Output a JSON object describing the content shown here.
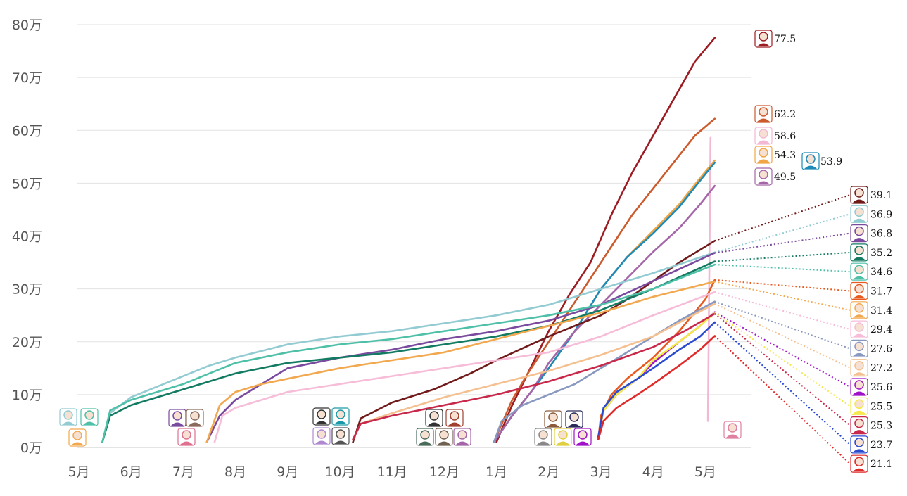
{
  "chart_data": {
    "type": "line",
    "y_ticks": [
      "0万",
      "10万",
      "20万",
      "30万",
      "40万",
      "50万",
      "60万",
      "70万",
      "80万"
    ],
    "x_ticks": [
      "5月",
      "6月",
      "7月",
      "8月",
      "9月",
      "10月",
      "11月",
      "12月",
      "1月",
      "2月",
      "3月",
      "4月",
      "5月"
    ],
    "ylim": [
      0,
      80
    ],
    "grid": "horizontal",
    "series": [
      {
        "value_label": "77.5",
        "color": "#9c1c22",
        "points": [
          [
            8.0,
            1
          ],
          [
            8.3,
            8
          ],
          [
            8.6,
            14
          ],
          [
            9.0,
            22
          ],
          [
            9.4,
            29
          ],
          [
            9.8,
            35
          ],
          [
            10.2,
            44
          ],
          [
            10.6,
            52
          ],
          [
            11.0,
            59
          ],
          [
            11.4,
            66
          ],
          [
            11.8,
            73
          ],
          [
            12.18,
            77.5
          ]
        ]
      },
      {
        "value_label": "62.2",
        "color": "#cc5a2c",
        "points": [
          [
            7.95,
            1
          ],
          [
            8.3,
            9
          ],
          [
            8.6,
            14
          ],
          [
            9.0,
            20
          ],
          [
            9.4,
            26
          ],
          [
            9.8,
            32
          ],
          [
            10.2,
            38
          ],
          [
            10.6,
            44
          ],
          [
            11.0,
            49
          ],
          [
            11.4,
            54
          ],
          [
            11.8,
            59
          ],
          [
            12.18,
            62.2
          ]
        ]
      },
      {
        "value_label": "58.6",
        "color": "#f2b8d4",
        "points": [
          [
            12.05,
            5
          ],
          [
            12.1,
            58.6
          ]
        ]
      },
      {
        "value_label": "54.3",
        "color": "#f0a646",
        "points": [
          [
            7.95,
            1
          ],
          [
            8.3,
            6
          ],
          [
            8.7,
            11
          ],
          [
            9.0,
            15
          ],
          [
            9.5,
            22
          ],
          [
            10.0,
            30
          ],
          [
            10.5,
            36
          ],
          [
            11.0,
            41
          ],
          [
            11.5,
            46
          ],
          [
            11.9,
            51
          ],
          [
            12.18,
            54.3
          ]
        ]
      },
      {
        "value_label": "53.9",
        "color": "#1e8ab8",
        "points": [
          [
            7.95,
            1
          ],
          [
            8.3,
            6
          ],
          [
            8.7,
            11
          ],
          [
            9.0,
            15
          ],
          [
            9.5,
            22
          ],
          [
            10.0,
            30
          ],
          [
            10.5,
            36
          ],
          [
            11.0,
            40.5
          ],
          [
            11.5,
            45.5
          ],
          [
            11.9,
            50.5
          ],
          [
            12.18,
            53.9
          ]
        ]
      },
      {
        "value_label": "49.5",
        "color": "#a466a8",
        "points": [
          [
            7.95,
            1
          ],
          [
            8.3,
            6
          ],
          [
            8.7,
            11
          ],
          [
            9.0,
            16
          ],
          [
            9.5,
            22
          ],
          [
            10.0,
            27
          ],
          [
            10.5,
            32
          ],
          [
            11.0,
            37
          ],
          [
            11.5,
            41.5
          ],
          [
            11.9,
            46
          ],
          [
            12.18,
            49.5
          ]
        ]
      },
      {
        "value_label": "39.1",
        "color": "#701a1a",
        "points": [
          [
            5.25,
            1
          ],
          [
            5.4,
            5.5
          ],
          [
            6.0,
            8.5
          ],
          [
            6.8,
            11
          ],
          [
            7.5,
            14
          ],
          [
            8.0,
            16.5
          ],
          [
            9.0,
            21
          ],
          [
            10.0,
            25
          ],
          [
            10.5,
            28
          ],
          [
            11.0,
            31.5
          ],
          [
            11.5,
            35
          ],
          [
            12.18,
            39.1
          ]
        ]
      },
      {
        "value_label": "36.9",
        "color": "#92cbd2",
        "points": [
          [
            0.45,
            1
          ],
          [
            0.6,
            6.5
          ],
          [
            1.0,
            9.5
          ],
          [
            1.5,
            11.5
          ],
          [
            2.0,
            13.5
          ],
          [
            2.5,
            15.5
          ],
          [
            3.0,
            17
          ],
          [
            4.0,
            19.5
          ],
          [
            5.0,
            21
          ],
          [
            6.0,
            22
          ],
          [
            7.0,
            23.5
          ],
          [
            8.0,
            25
          ],
          [
            9.0,
            27
          ],
          [
            10.0,
            30
          ],
          [
            11.0,
            33
          ],
          [
            12.18,
            36.9
          ]
        ]
      },
      {
        "value_label": "36.8",
        "color": "#7a4a9e",
        "points": [
          [
            2.45,
            1
          ],
          [
            2.7,
            6
          ],
          [
            3.0,
            9
          ],
          [
            3.5,
            12
          ],
          [
            4.0,
            15
          ],
          [
            5.0,
            17
          ],
          [
            6.0,
            18.5
          ],
          [
            7.0,
            20.5
          ],
          [
            8.0,
            22
          ],
          [
            9.0,
            24
          ],
          [
            10.0,
            27
          ],
          [
            11.0,
            31.5
          ],
          [
            12.18,
            36.8
          ]
        ]
      },
      {
        "value_label": "35.2",
        "color": "#137b62",
        "points": [
          [
            0.45,
            1
          ],
          [
            0.6,
            6
          ],
          [
            1.0,
            8
          ],
          [
            1.5,
            9.5
          ],
          [
            2.0,
            11
          ],
          [
            2.5,
            12.5
          ],
          [
            3.0,
            14
          ],
          [
            4.0,
            16
          ],
          [
            5.0,
            17
          ],
          [
            6.0,
            18
          ],
          [
            7.0,
            19.5
          ],
          [
            8.0,
            21
          ],
          [
            9.0,
            23
          ],
          [
            10.0,
            26
          ],
          [
            11.0,
            30
          ],
          [
            12.18,
            35.2
          ]
        ]
      },
      {
        "value_label": "34.6",
        "color": "#4fc0a8",
        "points": [
          [
            0.45,
            1
          ],
          [
            0.6,
            7
          ],
          [
            1.0,
            9
          ],
          [
            1.5,
            10.5
          ],
          [
            2.0,
            12
          ],
          [
            2.5,
            14
          ],
          [
            3.0,
            16
          ],
          [
            4.0,
            18
          ],
          [
            5.0,
            19.5
          ],
          [
            6.0,
            20.5
          ],
          [
            7.0,
            22
          ],
          [
            8.0,
            23.5
          ],
          [
            9.0,
            25
          ],
          [
            10.0,
            27
          ],
          [
            11.0,
            30
          ],
          [
            12.18,
            34.6
          ]
        ]
      },
      {
        "value_label": "31.7",
        "color": "#e8591f",
        "points": [
          [
            9.95,
            1.5
          ],
          [
            10.0,
            6
          ],
          [
            10.2,
            10
          ],
          [
            10.5,
            13
          ],
          [
            11.0,
            17
          ],
          [
            11.5,
            22
          ],
          [
            12.0,
            28
          ],
          [
            12.18,
            31.7
          ]
        ]
      },
      {
        "value_label": "31.4",
        "color": "#f2a84e",
        "points": [
          [
            2.45,
            1
          ],
          [
            2.7,
            8
          ],
          [
            3.0,
            10.5
          ],
          [
            3.5,
            12
          ],
          [
            4.0,
            13
          ],
          [
            5.0,
            15
          ],
          [
            6.0,
            16.5
          ],
          [
            7.0,
            18
          ],
          [
            8.0,
            20.5
          ],
          [
            9.0,
            23
          ],
          [
            10.0,
            25.5
          ],
          [
            11.0,
            28.5
          ],
          [
            12.18,
            31.4
          ]
        ]
      },
      {
        "value_label": "29.4",
        "color": "#f6bcd8",
        "points": [
          [
            2.6,
            1
          ],
          [
            2.75,
            6
          ],
          [
            3.0,
            7.5
          ],
          [
            3.5,
            9
          ],
          [
            4.0,
            10.5
          ],
          [
            5.0,
            12
          ],
          [
            6.0,
            13.5
          ],
          [
            7.0,
            15
          ],
          [
            8.0,
            16.5
          ],
          [
            9.0,
            18
          ],
          [
            10.0,
            21
          ],
          [
            11.0,
            25
          ],
          [
            12.18,
            29.4
          ]
        ]
      },
      {
        "value_label": "27.6",
        "color": "#8898c0",
        "points": [
          [
            7.95,
            1
          ],
          [
            8.1,
            5
          ],
          [
            8.5,
            8
          ],
          [
            9.0,
            10
          ],
          [
            9.5,
            12
          ],
          [
            10.0,
            15
          ],
          [
            10.5,
            18
          ],
          [
            11.0,
            21
          ],
          [
            11.5,
            24
          ],
          [
            12.18,
            27.6
          ]
        ]
      },
      {
        "value_label": "27.2",
        "color": "#f4c090",
        "points": [
          [
            5.25,
            1.5
          ],
          [
            5.4,
            4.5
          ],
          [
            6.0,
            6.5
          ],
          [
            7.0,
            9.5
          ],
          [
            8.0,
            12
          ],
          [
            9.0,
            14.5
          ],
          [
            10.0,
            17.5
          ],
          [
            11.0,
            21
          ],
          [
            12.18,
            27.2
          ]
        ]
      },
      {
        "value_label": "25.6",
        "color": "#a012c8",
        "points": [
          [
            9.95,
            2
          ],
          [
            10.05,
            7
          ],
          [
            10.3,
            10
          ],
          [
            10.7,
            13
          ],
          [
            11.0,
            16
          ],
          [
            11.5,
            20
          ],
          [
            11.9,
            23
          ],
          [
            12.18,
            25.6
          ]
        ]
      },
      {
        "value_label": "25.5",
        "color": "#f5e84a",
        "points": [
          [
            9.95,
            2
          ],
          [
            10.05,
            7
          ],
          [
            10.3,
            10
          ],
          [
            10.7,
            13
          ],
          [
            11.0,
            16.5
          ],
          [
            11.5,
            20
          ],
          [
            11.9,
            23
          ],
          [
            12.18,
            25.5
          ]
        ]
      },
      {
        "value_label": "25.3",
        "color": "#c8284a",
        "points": [
          [
            5.25,
            1.5
          ],
          [
            5.4,
            4.5
          ],
          [
            6.0,
            6
          ],
          [
            7.0,
            8
          ],
          [
            8.0,
            10
          ],
          [
            9.0,
            12.5
          ],
          [
            10.0,
            15.5
          ],
          [
            11.0,
            19
          ],
          [
            11.6,
            22
          ],
          [
            12.18,
            25.3
          ]
        ]
      },
      {
        "value_label": "23.7",
        "color": "#2a4ad0",
        "points": [
          [
            9.95,
            2
          ],
          [
            10.05,
            7.5
          ],
          [
            10.3,
            10.5
          ],
          [
            10.7,
            13
          ],
          [
            11.0,
            15
          ],
          [
            11.5,
            18.5
          ],
          [
            11.9,
            21
          ],
          [
            12.18,
            23.7
          ]
        ]
      },
      {
        "value_label": "21.1",
        "color": "#e02a2a",
        "points": [
          [
            9.95,
            1.5
          ],
          [
            10.05,
            5
          ],
          [
            10.3,
            7.5
          ],
          [
            10.7,
            10
          ],
          [
            11.0,
            12
          ],
          [
            11.5,
            15.5
          ],
          [
            11.9,
            18.5
          ],
          [
            12.18,
            21.1
          ]
        ]
      }
    ]
  }
}
